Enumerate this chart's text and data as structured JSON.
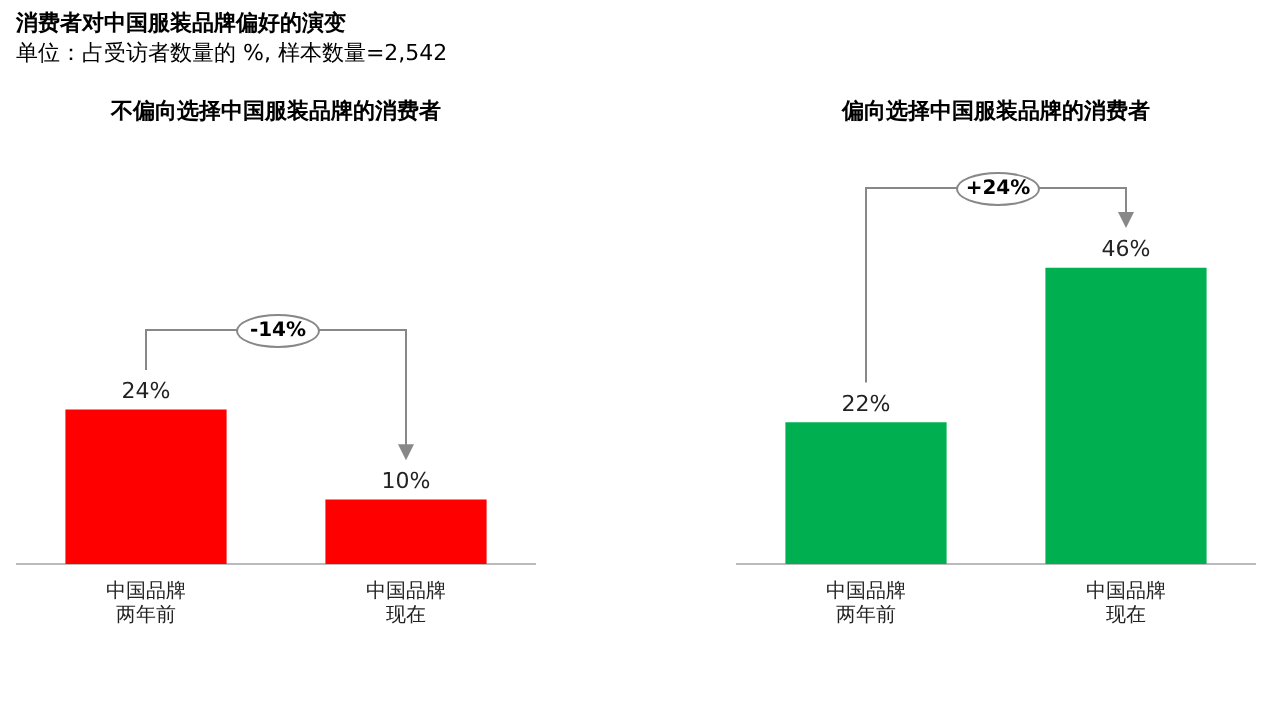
{
  "chart_data": [
    {
      "type": "bar",
      "title": "消费者对中国服装品牌偏好的演变",
      "subtitle": "单位：占受访者数量的 %, 样本数量=2,542",
      "xlabel": "不偏向选择中国服装品牌的消费者",
      "categories": [
        "中国品牌两年前",
        "中国品牌现在"
      ],
      "values": [
        24,
        10
      ],
      "value_labels": [
        "24%",
        "10%"
      ],
      "color": "#ff0000",
      "annotations": [
        "-14%"
      ],
      "tick_labels": "x",
      "grid": false,
      "legend": false
    },
    {
      "type": "bar",
      "xlabel": "偏向选择中国服装品牌的消费者",
      "categories": [
        "中国品牌两年前",
        "中国品牌现在"
      ],
      "values": [
        22,
        46
      ],
      "value_labels": [
        "22%",
        "46%"
      ],
      "color": "#00b050",
      "annotations": [
        "+24%"
      ],
      "tick_labels": "x",
      "grid": false,
      "legend": false
    }
  ]
}
